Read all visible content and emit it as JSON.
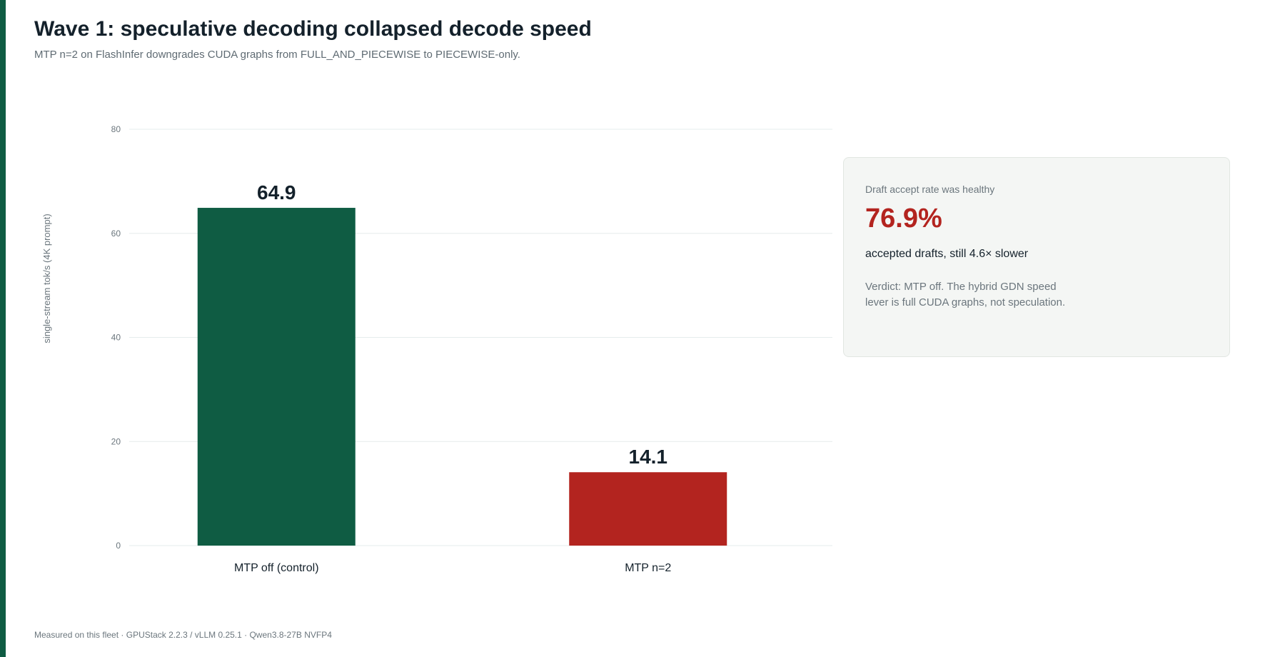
{
  "page": {
    "title": "Wave 1: speculative decoding collapsed decode speed",
    "subtitle": "MTP n=2 on FlashInfer downgrades CUDA graphs from FULL_AND_PIECEWISE to PIECEWISE-only.",
    "footer": "Measured on this fleet · GPUStack 2.2.3 / vLLM 0.25.1 · Qwen3.8-27B NVFP4",
    "accent_color": "#0f5c43"
  },
  "chart_data": {
    "type": "bar",
    "categories": [
      "MTP off (control)",
      "MTP n=2"
    ],
    "values": [
      64.9,
      14.1
    ],
    "value_labels": [
      "64.9",
      "14.1"
    ],
    "bar_colors": [
      "#0f5c43",
      "#b3241f"
    ],
    "title": "",
    "xlabel": "",
    "ylabel": "single-stream tok/s (4K prompt)",
    "ylim": [
      0,
      80
    ],
    "yticks": [
      0,
      20,
      40,
      60,
      80
    ],
    "grid": true,
    "legend": "none"
  },
  "callout": {
    "label": "Draft accept rate was healthy",
    "value": "76.9%",
    "value_color": "#b3241f",
    "description": "accepted drafts, still 4.6× slower",
    "verdict": "Verdict: MTP off. The hybrid GDN speed lever is full CUDA graphs, not speculation."
  }
}
